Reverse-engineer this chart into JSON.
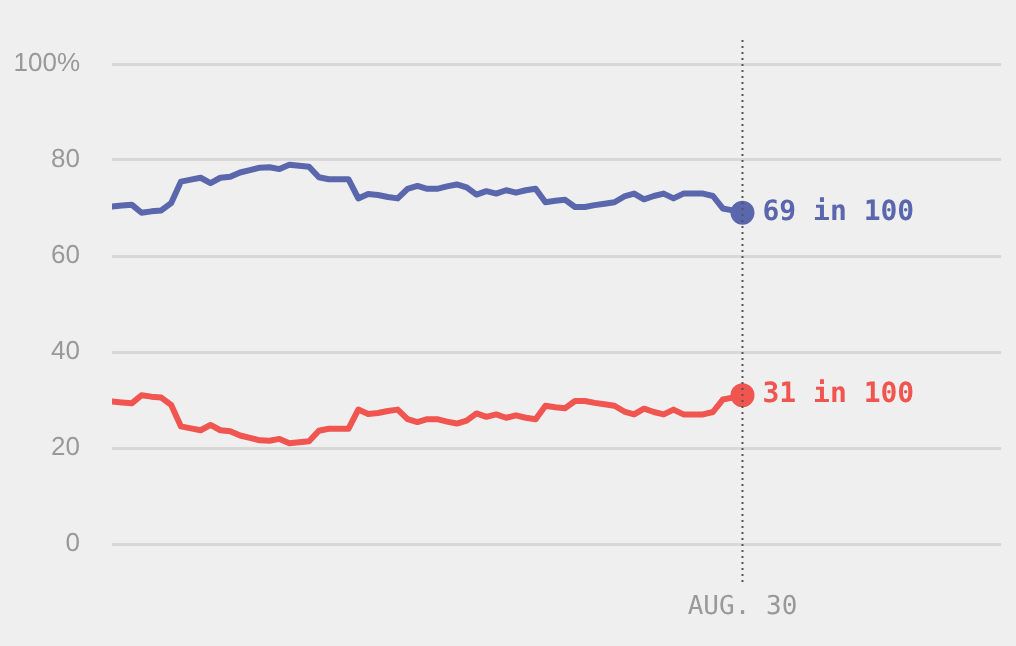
{
  "chart_data": {
    "type": "line",
    "categories": [
      null,
      null,
      null,
      null,
      null,
      null,
      null,
      null,
      null,
      null,
      null,
      null,
      null,
      null,
      null,
      null,
      null,
      null,
      null,
      null,
      null,
      null,
      null,
      null,
      null,
      null,
      null,
      null,
      null,
      null,
      null,
      null,
      null,
      null,
      null,
      null,
      null,
      null,
      null,
      null,
      null,
      null,
      null,
      null,
      null,
      null,
      null,
      null,
      null,
      null,
      null,
      null,
      null,
      null,
      null,
      null,
      null,
      null,
      null,
      null,
      null,
      null,
      null,
      null,
      "AUG. 30"
    ],
    "series": [
      {
        "color": "#5a67ad",
        "values": [
          70.3,
          70.5,
          70.7,
          69,
          69.3,
          69.5,
          71,
          75.5,
          75.9,
          76.3,
          75.2,
          76.3,
          76.5,
          77.4,
          77.9,
          78.4,
          78.5,
          78.1,
          79,
          78.8,
          78.6,
          76.4,
          76,
          76,
          76,
          72,
          72.9,
          72.7,
          72.3,
          72,
          74,
          74.6,
          74,
          74,
          74.5,
          74.9,
          74.3,
          72.8,
          73.5,
          73,
          73.7,
          73.2,
          73.7,
          74,
          71.2,
          71.5,
          71.7,
          70.2,
          70.2,
          70.6,
          70.9,
          71.2,
          72.4,
          73,
          71.8,
          72.5,
          73,
          72,
          73,
          73,
          73,
          72.5,
          69.9,
          69.5,
          69
        ]
      },
      {
        "color": "#f0554f",
        "values": [
          29.7,
          29.5,
          29.3,
          31,
          30.7,
          30.5,
          29,
          24.5,
          24.1,
          23.7,
          24.8,
          23.7,
          23.5,
          22.6,
          22.1,
          21.6,
          21.5,
          21.9,
          21,
          21.2,
          21.4,
          23.6,
          24,
          24,
          24,
          28,
          27.1,
          27.3,
          27.7,
          28,
          26,
          25.4,
          26,
          26,
          25.5,
          25.1,
          25.7,
          27.2,
          26.5,
          27,
          26.3,
          26.8,
          26.3,
          26,
          28.8,
          28.5,
          28.3,
          29.8,
          29.8,
          29.4,
          29.1,
          28.8,
          27.6,
          27,
          28.2,
          27.5,
          27,
          28,
          27,
          27,
          27,
          27.5,
          30.1,
          30.5,
          31
        ]
      }
    ],
    "ylim": [
      0,
      100
    ],
    "yticks": [
      0,
      20,
      40,
      60,
      80,
      {
        "value": 100,
        "label": "100%"
      }
    ],
    "grid": "y",
    "legend": false,
    "ref_lines": [
      {
        "axis": "x",
        "value": "AUG. 30",
        "color": "#555555",
        "line_style": "dotted"
      }
    ],
    "annotations": [
      {
        "text": "69 in 100",
        "x": "AUG. 30",
        "y": 69
      },
      {
        "text": "31 in 100",
        "x": "AUG. 30",
        "y": 31
      }
    ]
  }
}
